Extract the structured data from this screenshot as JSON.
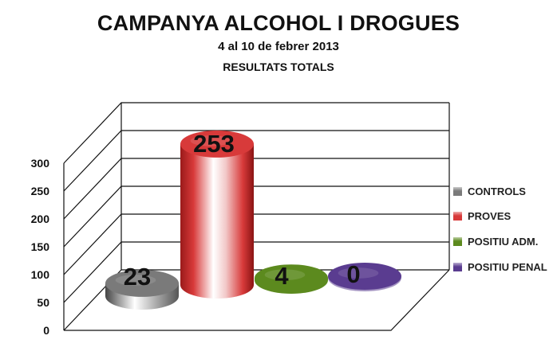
{
  "title": "CAMPANYA ALCOHOL I DROGUES",
  "subtitle": "4 al 10 de febrer 2013",
  "subtitle2": "RESULTATS TOTALS",
  "chart_data": {
    "type": "bar",
    "style": "3d-cylinder",
    "categories": [
      "CONTROLS",
      "PROVES",
      "POSITIU ADM.",
      "POSITIU PENAL"
    ],
    "values": [
      23,
      253,
      4,
      0
    ],
    "data_labels": [
      "23",
      "253",
      "4",
      "0"
    ],
    "colors": [
      "#7a7a7a",
      "#d83a3a",
      "#5c8a1e",
      "#5a3c90"
    ],
    "ylim": [
      0,
      300
    ],
    "yticks": [
      0,
      50,
      100,
      150,
      200,
      250,
      300
    ],
    "ytick_labels": [
      "0",
      "50",
      "100",
      "150",
      "200",
      "250",
      "300"
    ],
    "grid": true,
    "legend": "right",
    "xlabel": "",
    "ylabel": ""
  }
}
